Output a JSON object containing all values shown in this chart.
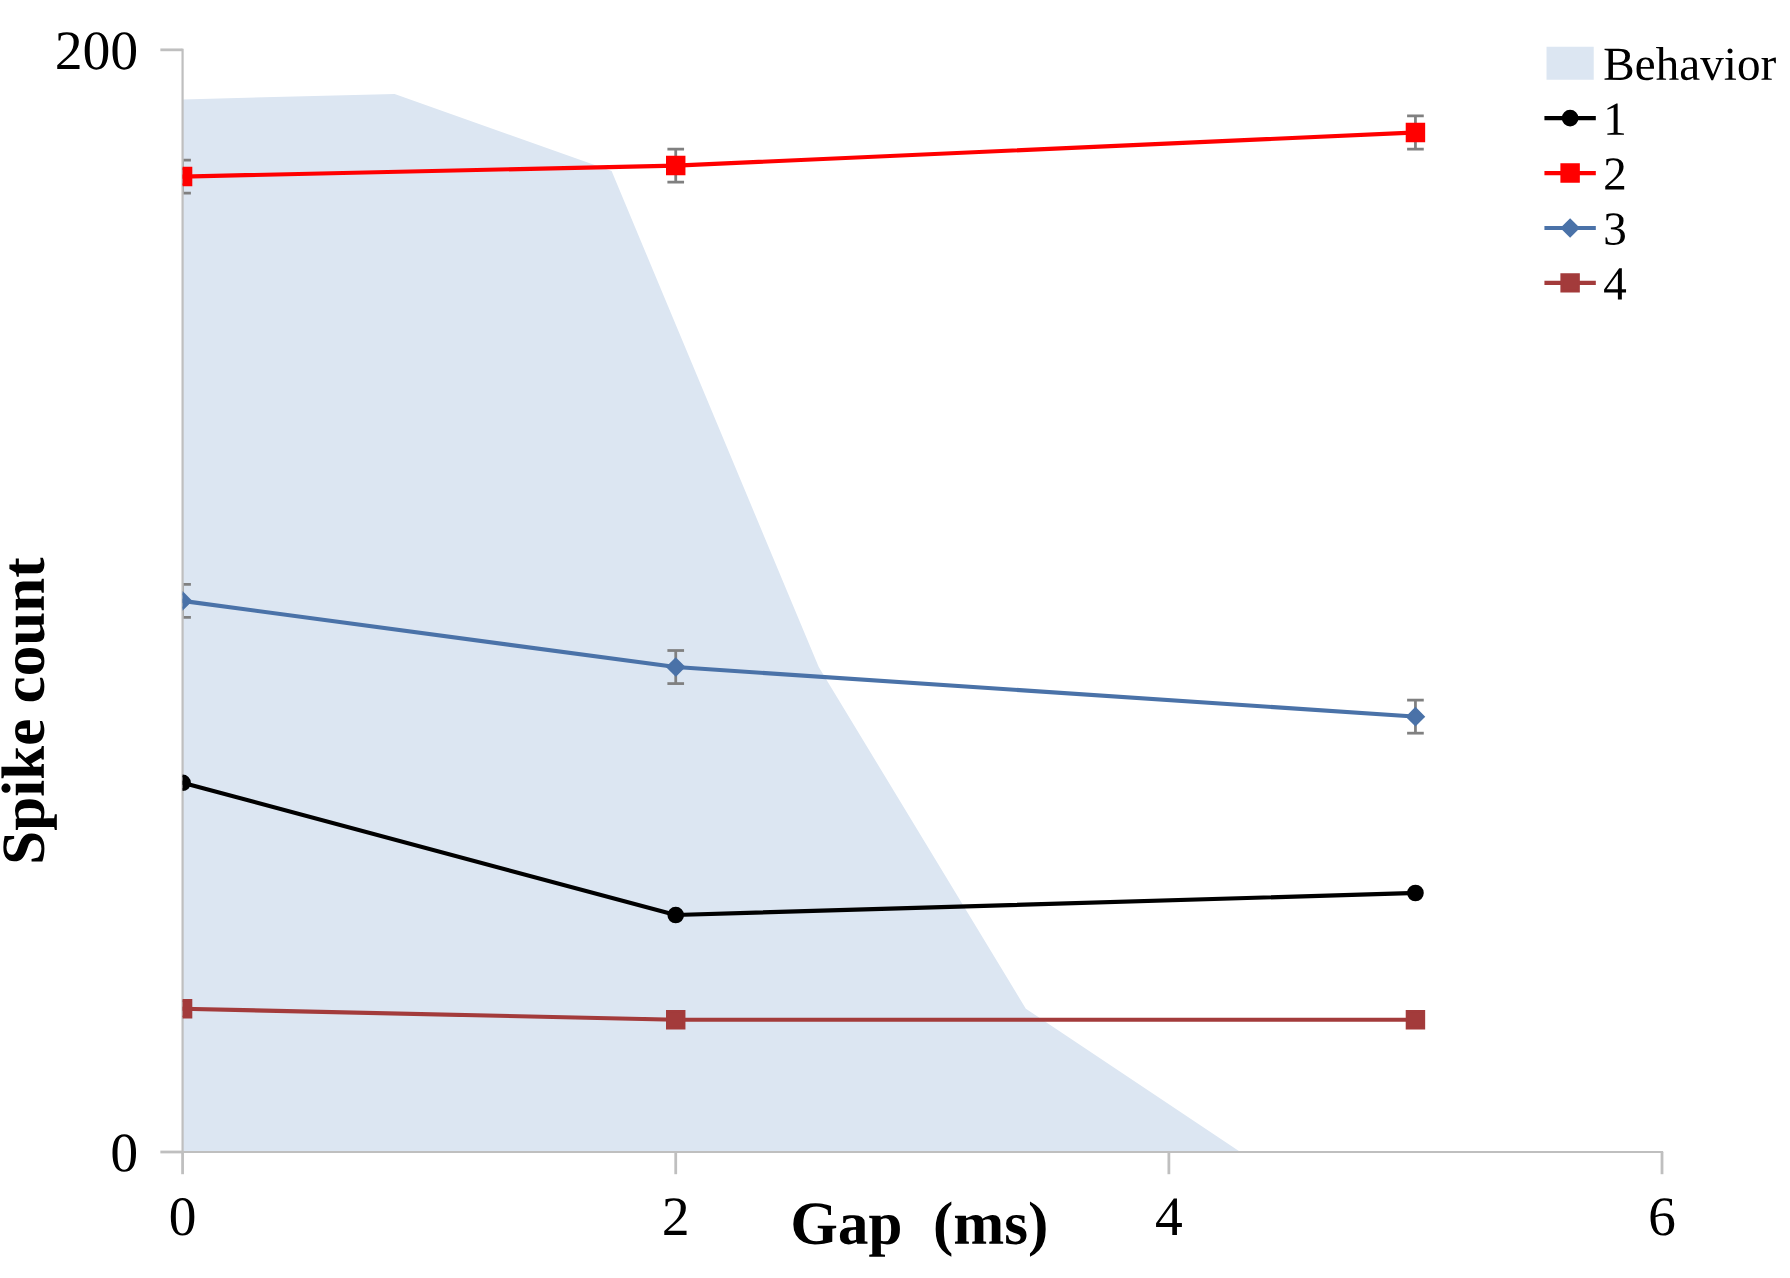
{
  "chart_data": {
    "type": "line",
    "xlabel": "Gap  (ms)",
    "ylabel": "Spike count",
    "xlim": [
      0,
      6
    ],
    "xticks": [
      0,
      2,
      4,
      6
    ],
    "ylim": [
      0,
      200
    ],
    "yticks": [
      0,
      200
    ],
    "grid": false,
    "legend": "top right",
    "series": [
      {
        "name": "Behavior",
        "type": "area",
        "color": "#dce6f2",
        "x": [
          0,
          0.86,
          1.74,
          2.58,
          3.42,
          4.29
        ],
        "values": [
          191,
          192,
          178,
          88,
          26,
          0
        ]
      },
      {
        "name": "1",
        "color": "#000000",
        "marker": "circle",
        "x": [
          0,
          2,
          5
        ],
        "values": [
          67,
          43,
          47
        ]
      },
      {
        "name": "2",
        "color": "#ff0000",
        "marker": "square",
        "x": [
          0,
          2,
          5
        ],
        "values": [
          177,
          179,
          185
        ],
        "errors": [
          3,
          3,
          3
        ]
      },
      {
        "name": "3",
        "color": "#4a72a8",
        "marker": "diamond",
        "x": [
          0,
          2,
          5
        ],
        "values": [
          100,
          88,
          79
        ],
        "errors": [
          3,
          3,
          3
        ]
      },
      {
        "name": "4",
        "color": "#a33b3b",
        "marker": "square",
        "x": [
          0,
          2,
          5
        ],
        "values": [
          26,
          24,
          24
        ]
      }
    ]
  }
}
